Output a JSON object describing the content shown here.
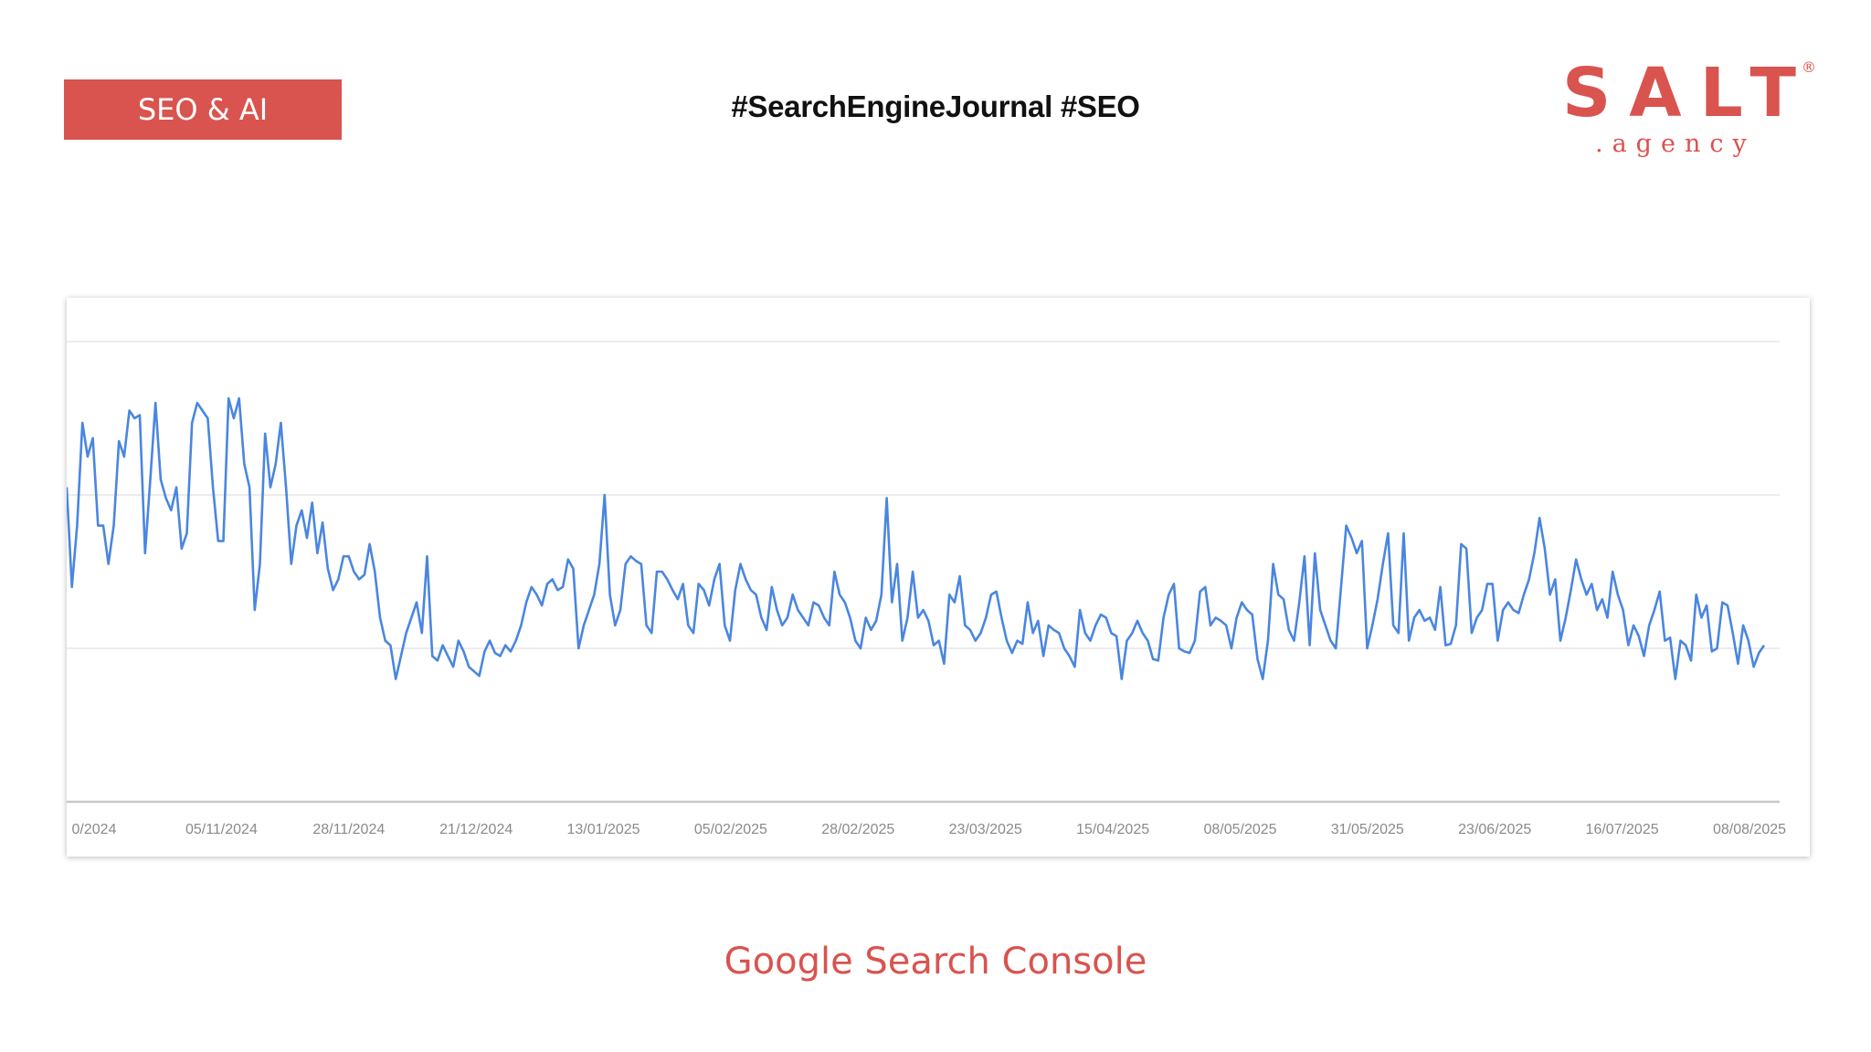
{
  "header": {
    "tag_label": "SEO & AI",
    "hashtags": "#SearchEngineJournal #SEO"
  },
  "logo": {
    "name": "SALT",
    "sub": ".agency",
    "registered": "®"
  },
  "caption": "Google Search Console",
  "colors": {
    "accent": "#d9534f",
    "line": "#4a86e0",
    "grid": "#e6e6e6",
    "axis": "#c8c8c8",
    "tick_text": "#8a8a8a"
  },
  "chart_data": {
    "type": "line",
    "title": "",
    "xlabel": "",
    "ylabel": "",
    "x_tick_labels": [
      "0/2024",
      "05/11/2024",
      "28/11/2024",
      "21/12/2024",
      "13/01/2025",
      "05/02/2025",
      "28/02/2025",
      "23/03/2025",
      "15/04/2025",
      "08/05/2025",
      "31/05/2025",
      "23/06/2025",
      "16/07/2025",
      "08/08/2025"
    ],
    "ylim": [
      0,
      3
    ],
    "gridlines": [
      1,
      2,
      3
    ],
    "grid": true,
    "series": [
      {
        "values": [
          2.05,
          1.4,
          1.8,
          2.47,
          2.25,
          2.37,
          1.8,
          1.8,
          1.55,
          1.8,
          2.35,
          2.25,
          2.55,
          2.5,
          2.52,
          1.62,
          2.1,
          2.6,
          2.1,
          1.98,
          1.9,
          2.05,
          1.65,
          1.75,
          2.47,
          2.6,
          2.55,
          2.5,
          2.05,
          1.7,
          1.7,
          2.63,
          2.5,
          2.63,
          2.2,
          2.05,
          1.25,
          1.55,
          2.4,
          2.05,
          2.2,
          2.47,
          2.05,
          1.55,
          1.8,
          1.9,
          1.72,
          1.95,
          1.62,
          1.82,
          1.52,
          1.38,
          1.45,
          1.6,
          1.6,
          1.5,
          1.45,
          1.48,
          1.68,
          1.5,
          1.2,
          1.05,
          1.02,
          0.8,
          0.95,
          1.1,
          1.2,
          1.3,
          1.1,
          1.6,
          0.95,
          0.92,
          1.02,
          0.95,
          0.88,
          1.05,
          0.98,
          0.88,
          0.85,
          0.82,
          0.98,
          1.05,
          0.97,
          0.95,
          1.02,
          0.98,
          1.05,
          1.15,
          1.3,
          1.4,
          1.35,
          1.28,
          1.42,
          1.45,
          1.38,
          1.4,
          1.58,
          1.52,
          1.0,
          1.15,
          1.25,
          1.35,
          1.55,
          2.0,
          1.35,
          1.15,
          1.25,
          1.55,
          1.6,
          1.57,
          1.55,
          1.15,
          1.1,
          1.5,
          1.5,
          1.45,
          1.38,
          1.32,
          1.42,
          1.15,
          1.1,
          1.42,
          1.38,
          1.28,
          1.45,
          1.55,
          1.15,
          1.05,
          1.38,
          1.55,
          1.45,
          1.38,
          1.35,
          1.2,
          1.12,
          1.4,
          1.25,
          1.15,
          1.2,
          1.35,
          1.25,
          1.2,
          1.15,
          1.3,
          1.28,
          1.2,
          1.15,
          1.5,
          1.35,
          1.3,
          1.2,
          1.05,
          1.0,
          1.2,
          1.12,
          1.18,
          1.35,
          1.98,
          1.3,
          1.55,
          1.05,
          1.2,
          1.5,
          1.2,
          1.25,
          1.18,
          1.02,
          1.05,
          0.9,
          1.35,
          1.3,
          1.47,
          1.15,
          1.12,
          1.05,
          1.1,
          1.2,
          1.35,
          1.37,
          1.2,
          1.05,
          0.97,
          1.05,
          1.03,
          1.3,
          1.1,
          1.18,
          0.95,
          1.15,
          1.12,
          1.1,
          1.0,
          0.95,
          0.88,
          1.25,
          1.1,
          1.05,
          1.15,
          1.22,
          1.2,
          1.1,
          1.08,
          0.8,
          1.05,
          1.1,
          1.18,
          1.1,
          1.05,
          0.93,
          0.92,
          1.2,
          1.35,
          1.42,
          1.0,
          0.98,
          0.97,
          1.05,
          1.37,
          1.4,
          1.15,
          1.2,
          1.18,
          1.15,
          1.0,
          1.2,
          1.3,
          1.25,
          1.22,
          0.93,
          0.8,
          1.05,
          1.55,
          1.35,
          1.32,
          1.12,
          1.05,
          1.3,
          1.6,
          1.02,
          1.62,
          1.25,
          1.15,
          1.05,
          1.0,
          1.4,
          1.8,
          1.72,
          1.62,
          1.7,
          1.0,
          1.15,
          1.32,
          1.55,
          1.75,
          1.15,
          1.1,
          1.75,
          1.05,
          1.2,
          1.25,
          1.18,
          1.2,
          1.12,
          1.4,
          1.02,
          1.03,
          1.15,
          1.68,
          1.65,
          1.1,
          1.2,
          1.25,
          1.42,
          1.42,
          1.05,
          1.25,
          1.3,
          1.25,
          1.23,
          1.35,
          1.45,
          1.62,
          1.85,
          1.65,
          1.35,
          1.45,
          1.05,
          1.2,
          1.38,
          1.58,
          1.45,
          1.35,
          1.42,
          1.25,
          1.32,
          1.2,
          1.5,
          1.35,
          1.25,
          1.02,
          1.15,
          1.08,
          0.95,
          1.15,
          1.25,
          1.37,
          1.05,
          1.07,
          0.8,
          1.05,
          1.02,
          0.92,
          1.35,
          1.2,
          1.28,
          0.98,
          1.0,
          1.3,
          1.28,
          1.1,
          0.9,
          1.15,
          1.05,
          0.88,
          0.97,
          1.02
        ]
      }
    ]
  }
}
